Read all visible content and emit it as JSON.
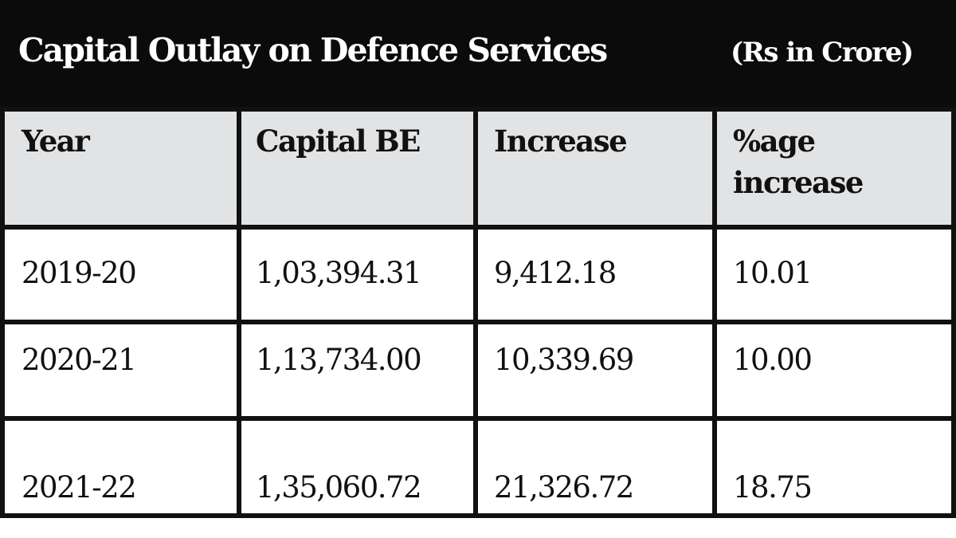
{
  "header": {
    "title": "Capital Outlay on Defence Services",
    "unit": "(Rs in Crore)"
  },
  "table": {
    "columns": [
      "Year",
      "Capital BE",
      "Increase",
      "%age increase"
    ],
    "rows": [
      [
        "2019-20",
        "1,03,394.31",
        "9,412.18",
        "10.01"
      ],
      [
        "2020-21",
        "1,13,734.00",
        "10,339.69",
        "10.00"
      ],
      [
        "2021-22",
        "1,35,060.72",
        "21,326.72",
        "18.75"
      ]
    ]
  },
  "colors": {
    "title_background": "#0b0b0b",
    "header_row_background": "#e2e3e5",
    "grid_lines": "#111111",
    "title_text": "#ffffff"
  }
}
